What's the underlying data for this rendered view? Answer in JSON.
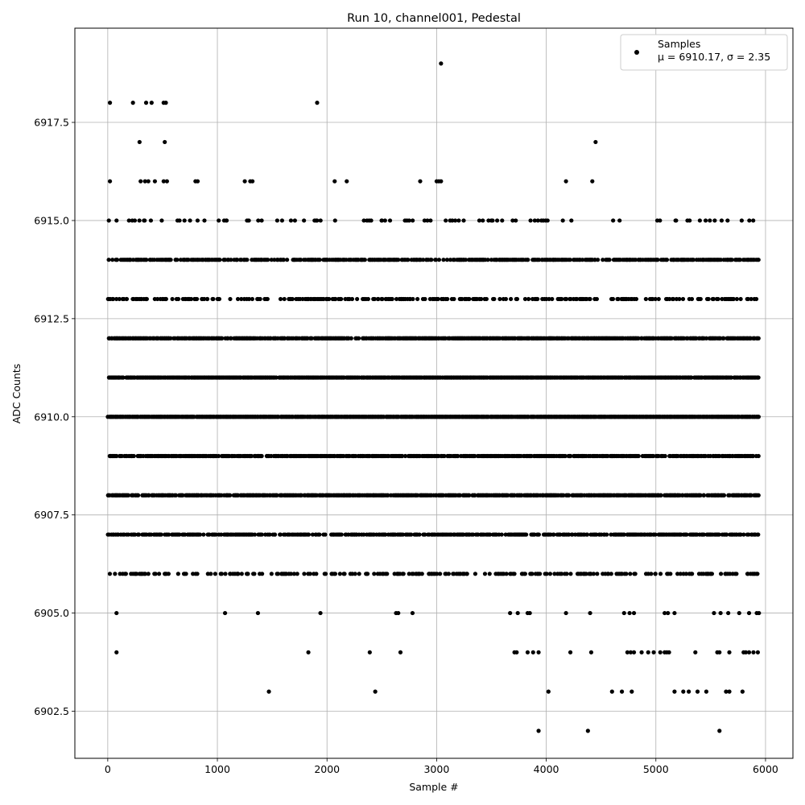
{
  "chart_data": {
    "type": "scatter",
    "title": "Run 10, channel001, Pedestal",
    "xlabel": "Sample #",
    "ylabel": "ADC Counts",
    "xlim": [
      -300,
      6250
    ],
    "ylim": [
      6901.3,
      6919.9
    ],
    "x_ticks": [
      0,
      1000,
      2000,
      3000,
      4000,
      5000,
      6000
    ],
    "x_tick_labels": [
      "0",
      "1000",
      "2000",
      "3000",
      "4000",
      "5000",
      "6000"
    ],
    "y_ticks": [
      6902.5,
      6905.0,
      6907.5,
      6910.0,
      6912.5,
      6915.0,
      6917.5
    ],
    "y_tick_labels": [
      "6902.5",
      "6905.0",
      "6907.5",
      "6910.0",
      "6912.5",
      "6915.0",
      "6917.5"
    ],
    "grid": true,
    "marker_color": "#000000",
    "legend": {
      "placement": "top-right",
      "series_label": "Samples",
      "stats_label": "μ = 6910.17, σ = 2.35"
    },
    "series": [
      {
        "name": "Samples",
        "dense_levels": [
          {
            "y": 6914,
            "x_range": [
              0,
              5940
            ],
            "density": 0.6
          },
          {
            "y": 6913,
            "x_range": [
              0,
              5940
            ],
            "density": 0.35
          },
          {
            "y": 6912,
            "x_range": [
              0,
              5940
            ],
            "density": 0.8
          },
          {
            "y": 6911,
            "x_range": [
              0,
              5940
            ],
            "density": 0.9
          },
          {
            "y": 6910,
            "x_range": [
              0,
              5940
            ],
            "density": 0.95
          },
          {
            "y": 6909,
            "x_range": [
              0,
              5940
            ],
            "density": 0.7
          },
          {
            "y": 6908,
            "x_range": [
              0,
              5940
            ],
            "density": 0.75
          },
          {
            "y": 6907,
            "x_range": [
              0,
              5940
            ],
            "density": 0.6
          },
          {
            "y": 6906,
            "x_range": [
              0,
              5940
            ],
            "density": 0.3
          },
          {
            "y": 6915,
            "x_range": [
              0,
              5940
            ],
            "density": 0.12
          }
        ],
        "points": [
          [
            20,
            6918
          ],
          [
            230,
            6918
          ],
          [
            350,
            6918
          ],
          [
            400,
            6918
          ],
          [
            510,
            6918
          ],
          [
            530,
            6918
          ],
          [
            1910,
            6918
          ],
          [
            3040,
            6919
          ],
          [
            290,
            6917
          ],
          [
            520,
            6917
          ],
          [
            4450,
            6917
          ],
          [
            20,
            6916
          ],
          [
            300,
            6916
          ],
          [
            340,
            6916
          ],
          [
            370,
            6916
          ],
          [
            430,
            6916
          ],
          [
            510,
            6916
          ],
          [
            540,
            6916
          ],
          [
            800,
            6916
          ],
          [
            820,
            6916
          ],
          [
            1250,
            6916
          ],
          [
            1300,
            6916
          ],
          [
            1320,
            6916
          ],
          [
            2070,
            6916
          ],
          [
            2180,
            6916
          ],
          [
            2850,
            6916
          ],
          [
            3000,
            6916
          ],
          [
            3020,
            6916
          ],
          [
            3040,
            6916
          ],
          [
            4180,
            6916
          ],
          [
            4420,
            6916
          ],
          [
            80,
            6905
          ],
          [
            1070,
            6905
          ],
          [
            1370,
            6905
          ],
          [
            1940,
            6905
          ],
          [
            2630,
            6905
          ],
          [
            2650,
            6905
          ],
          [
            2780,
            6905
          ],
          [
            3670,
            6905
          ],
          [
            3740,
            6905
          ],
          [
            3830,
            6905
          ],
          [
            3850,
            6905
          ],
          [
            4180,
            6905
          ],
          [
            4400,
            6905
          ],
          [
            4710,
            6905
          ],
          [
            4760,
            6905
          ],
          [
            4800,
            6905
          ],
          [
            5080,
            6905
          ],
          [
            5110,
            6905
          ],
          [
            5170,
            6905
          ],
          [
            5530,
            6905
          ],
          [
            5590,
            6905
          ],
          [
            5660,
            6905
          ],
          [
            5760,
            6905
          ],
          [
            5850,
            6905
          ],
          [
            5920,
            6905
          ],
          [
            5940,
            6905
          ],
          [
            80,
            6904
          ],
          [
            1830,
            6904
          ],
          [
            2390,
            6904
          ],
          [
            2670,
            6904
          ],
          [
            3710,
            6904
          ],
          [
            3730,
            6904
          ],
          [
            3830,
            6904
          ],
          [
            3880,
            6904
          ],
          [
            3930,
            6904
          ],
          [
            4220,
            6904
          ],
          [
            4410,
            6904
          ],
          [
            4740,
            6904
          ],
          [
            4770,
            6904
          ],
          [
            4800,
            6904
          ],
          [
            4870,
            6904
          ],
          [
            4930,
            6904
          ],
          [
            4980,
            6904
          ],
          [
            5040,
            6904
          ],
          [
            5080,
            6904
          ],
          [
            5100,
            6904
          ],
          [
            5120,
            6904
          ],
          [
            5360,
            6904
          ],
          [
            5560,
            6904
          ],
          [
            5580,
            6904
          ],
          [
            5670,
            6904
          ],
          [
            5800,
            6904
          ],
          [
            5820,
            6904
          ],
          [
            5850,
            6904
          ],
          [
            5890,
            6904
          ],
          [
            5930,
            6904
          ],
          [
            1470,
            6903
          ],
          [
            2440,
            6903
          ],
          [
            4020,
            6903
          ],
          [
            4600,
            6903
          ],
          [
            4690,
            6903
          ],
          [
            4780,
            6903
          ],
          [
            5170,
            6903
          ],
          [
            5250,
            6903
          ],
          [
            5300,
            6903
          ],
          [
            5380,
            6903
          ],
          [
            5460,
            6903
          ],
          [
            5640,
            6903
          ],
          [
            5670,
            6903
          ],
          [
            5790,
            6903
          ],
          [
            3930,
            6902
          ],
          [
            4380,
            6902
          ],
          [
            5580,
            6902
          ]
        ]
      }
    ]
  }
}
